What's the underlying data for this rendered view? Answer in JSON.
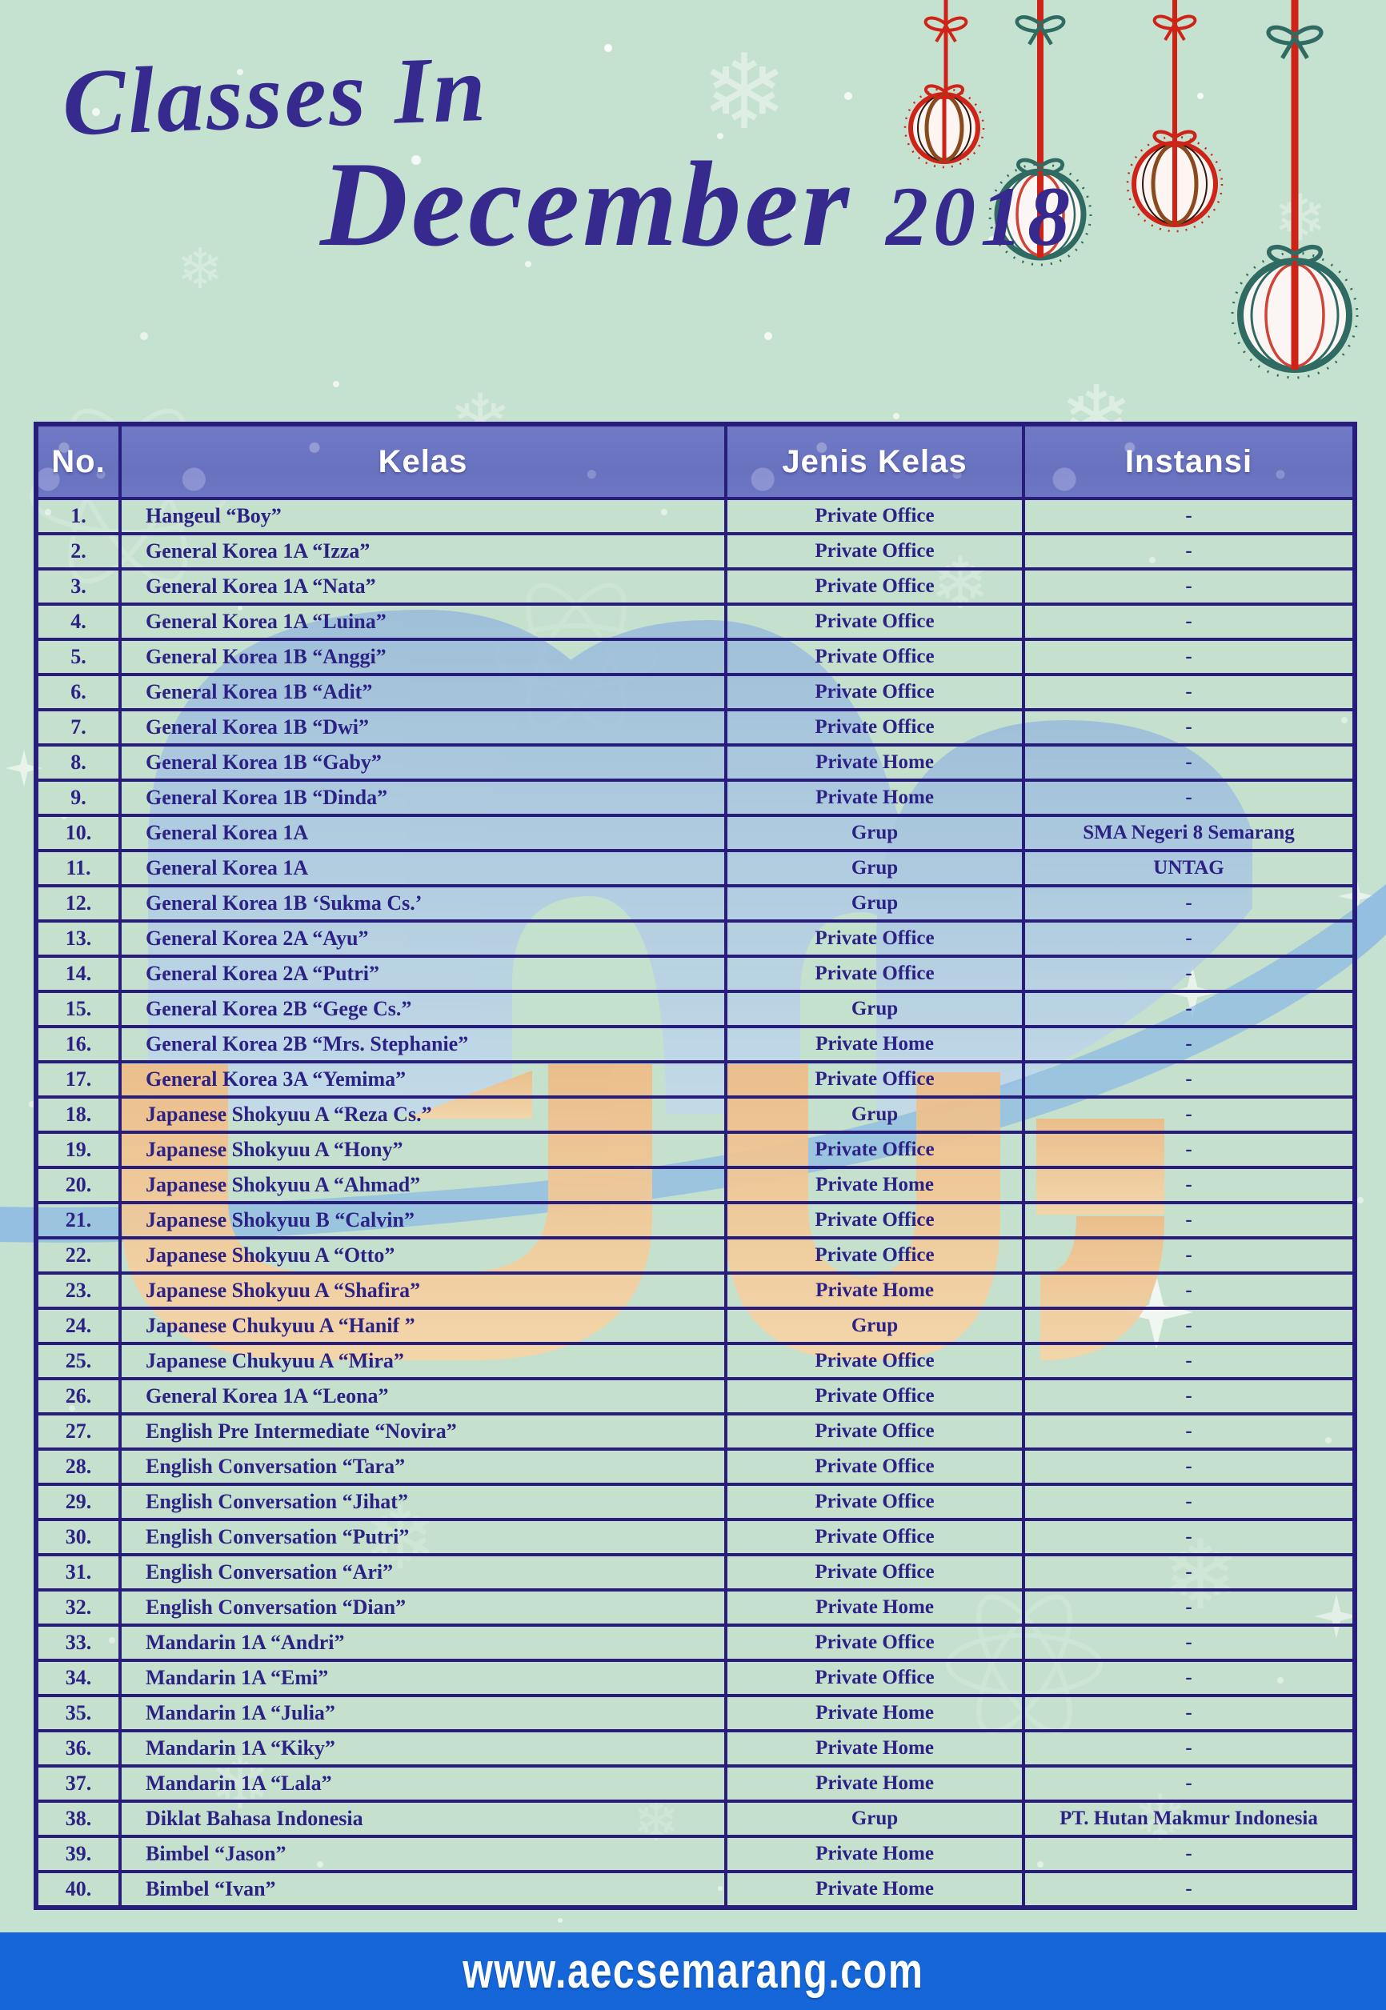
{
  "header": {
    "title_line1": "Classes In",
    "title_line2": "December",
    "year": "2018"
  },
  "table": {
    "columns": [
      "No.",
      "Kelas",
      "Jenis Kelas",
      "Instansi"
    ],
    "rows": [
      {
        "no": "1.",
        "kelas": "Hangeul  “Boy”",
        "jenis": "Private Office",
        "instansi": "-"
      },
      {
        "no": "2.",
        "kelas": "General Korea 1A  “Izza”",
        "jenis": "Private Office",
        "instansi": "-"
      },
      {
        "no": "3.",
        "kelas": "General Korea 1A  “Nata”",
        "jenis": "Private Office",
        "instansi": "-"
      },
      {
        "no": "4.",
        "kelas": "General Korea 1A  “Luina”",
        "jenis": "Private Office",
        "instansi": "-"
      },
      {
        "no": "5.",
        "kelas": "General Korea 1B  “Anggi”",
        "jenis": "Private Office",
        "instansi": "-"
      },
      {
        "no": "6.",
        "kelas": "General Korea 1B  “Adit”",
        "jenis": "Private Office",
        "instansi": "-"
      },
      {
        "no": "7.",
        "kelas": "General Korea 1B  “Dwi”",
        "jenis": "Private Office",
        "instansi": "-"
      },
      {
        "no": "8.",
        "kelas": "General Korea 1B  “Gaby”",
        "jenis": "Private Home",
        "instansi": "-"
      },
      {
        "no": "9.",
        "kelas": "General Korea 1B  “Dinda”",
        "jenis": "Private Home",
        "instansi": "-"
      },
      {
        "no": "10.",
        "kelas": "General Korea 1A",
        "jenis": "Grup",
        "instansi": "SMA Negeri 8 Semarang"
      },
      {
        "no": "11.",
        "kelas": "General Korea 1A",
        "jenis": "Grup",
        "instansi": "UNTAG"
      },
      {
        "no": "12.",
        "kelas": "General Korea 1B ‘Sukma Cs.’",
        "jenis": "Grup",
        "instansi": "-"
      },
      {
        "no": "13.",
        "kelas": "General Korea 2A  “Ayu”",
        "jenis": "Private Office",
        "instansi": "-"
      },
      {
        "no": "14.",
        "kelas": "General Korea 2A  “Putri”",
        "jenis": "Private Office",
        "instansi": "-"
      },
      {
        "no": "15.",
        "kelas": "General Korea 2B  “Gege Cs.”",
        "jenis": "Grup",
        "instansi": "-"
      },
      {
        "no": "16.",
        "kelas": "General Korea 2B  “Mrs. Stephanie”",
        "jenis": "Private Home",
        "instansi": "-"
      },
      {
        "no": "17.",
        "kelas": "General Korea 3A  “Yemima”",
        "jenis": "Private Office",
        "instansi": "-"
      },
      {
        "no": "18.",
        "kelas": "Japanese Shokyuu A “Reza Cs.”",
        "jenis": "Grup",
        "instansi": "-"
      },
      {
        "no": "19.",
        "kelas": "Japanese Shokyuu A “Hony”",
        "jenis": "Private Office",
        "instansi": "-"
      },
      {
        "no": "20.",
        "kelas": "Japanese Shokyuu A “Ahmad”",
        "jenis": "Private Home",
        "instansi": "-"
      },
      {
        "no": "21.",
        "kelas": "Japanese Shokyuu B “Calvin”",
        "jenis": "Private Office",
        "instansi": "-"
      },
      {
        "no": "22.",
        "kelas": "Japanese Shokyuu A “Otto”",
        "jenis": "Private Office",
        "instansi": "-"
      },
      {
        "no": "23.",
        "kelas": "Japanese Shokyuu A “Shafira”",
        "jenis": "Private Home",
        "instansi": "-"
      },
      {
        "no": "24.",
        "kelas": "Japanese Chukyuu A “Hanif ”",
        "jenis": "Grup",
        "instansi": "-"
      },
      {
        "no": "25.",
        "kelas": "Japanese Chukyuu A “Mira”",
        "jenis": "Private Office",
        "instansi": "-"
      },
      {
        "no": "26.",
        "kelas": "General Korea 1A “Leona”",
        "jenis": "Private Office",
        "instansi": "-"
      },
      {
        "no": "27.",
        "kelas": "English Pre Intermediate “Novira”",
        "jenis": "Private Office",
        "instansi": "-"
      },
      {
        "no": "28.",
        "kelas": "English Conversation “Tara”",
        "jenis": "Private Office",
        "instansi": "-"
      },
      {
        "no": "29.",
        "kelas": "English Conversation “Jihat”",
        "jenis": "Private Office",
        "instansi": "-"
      },
      {
        "no": "30.",
        "kelas": "English Conversation “Putri”",
        "jenis": "Private Office",
        "instansi": "-"
      },
      {
        "no": "31.",
        "kelas": "English Conversation “Ari”",
        "jenis": "Private Office",
        "instansi": "-"
      },
      {
        "no": "32.",
        "kelas": "English Conversation “Dian”",
        "jenis": "Private Home",
        "instansi": "-"
      },
      {
        "no": "33.",
        "kelas": "Mandarin 1A “Andri”",
        "jenis": "Private Office",
        "instansi": "-"
      },
      {
        "no": "34.",
        "kelas": "Mandarin 1A “Emi”",
        "jenis": "Private Office",
        "instansi": "-"
      },
      {
        "no": "35.",
        "kelas": "Mandarin 1A “Julia”",
        "jenis": "Private Home",
        "instansi": "-"
      },
      {
        "no": "36.",
        "kelas": "Mandarin 1A “Kiky”",
        "jenis": "Private Home",
        "instansi": "-"
      },
      {
        "no": "37.",
        "kelas": "Mandarin 1A “Lala”",
        "jenis": "Private Home",
        "instansi": "-"
      },
      {
        "no": "38.",
        "kelas": "Diklat Bahasa Indonesia",
        "jenis": "Grup",
        "instansi": "PT. Hutan Makmur Indonesia"
      },
      {
        "no": "39.",
        "kelas": "Bimbel “Jason”",
        "jenis": "Private Home",
        "instansi": "-"
      },
      {
        "no": "40.",
        "kelas": "Bimbel “Ivan”",
        "jenis": "Private Home",
        "instansi": "-"
      }
    ]
  },
  "footer": {
    "url": "www.aecsemarang.com"
  },
  "colors": {
    "background_mint": "#c5e1cf",
    "header_band": "#6872bf",
    "border_navy": "#281c7c",
    "text_navy": "#2c2185",
    "title_indigo": "#372a8e",
    "footer_blue": "#1566d8",
    "watermark_blue": "#9cc0ea",
    "watermark_orange": "#f5c08a",
    "ornament_red": "#cf2318",
    "ornament_teal": "#2f6b63"
  },
  "decorations": {
    "ornaments": [
      "red-bauble",
      "teal-bauble",
      "red-bauble",
      "teal-bauble"
    ],
    "background": "snowflakes-and-snow-dots"
  }
}
